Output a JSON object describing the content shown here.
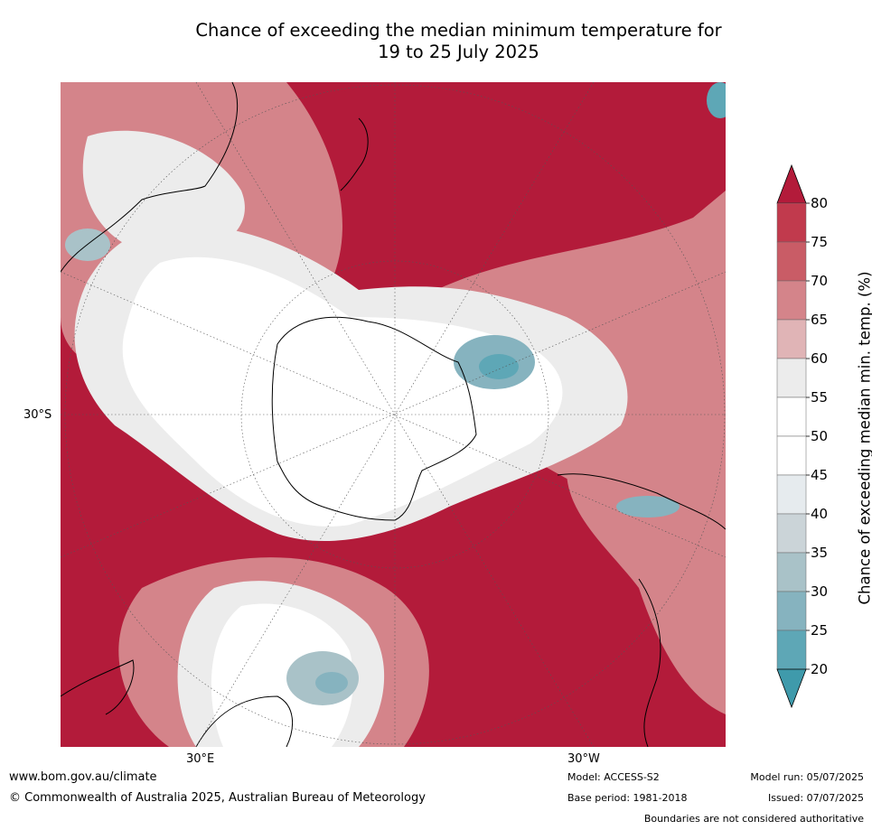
{
  "title": {
    "line1": "Chance of exceeding the median minimum temperature for",
    "line2": "19 to 25 July 2025"
  },
  "axes": {
    "lat_label": "30°S",
    "lon_left_label": "30°E",
    "lon_right_label": "30°W"
  },
  "colorbar": {
    "label": "Chance of exceeding median min. temp. (%)",
    "ticks": [
      "80",
      "75",
      "70",
      "65",
      "60",
      "55",
      "50",
      "45",
      "40",
      "35",
      "30",
      "25",
      "20"
    ],
    "colors": [
      "#b31b3a",
      "#c13a4d",
      "#c95c66",
      "#d4848a",
      "#e0b4b6",
      "#ececec",
      "#ffffff",
      "#ffffff",
      "#e6ebee",
      "#cbd4d8",
      "#a9c2c8",
      "#86b3bf",
      "#5ea7b6",
      "#3f9aab"
    ]
  },
  "footer": {
    "website": "www.bom.gov.au/climate",
    "copyright": "© Commonwealth of Australia 2025, Australian Bureau of Meteorology",
    "model": "Model: ACCESS-S2",
    "base_period": "Base period: 1981-2018",
    "model_run": "Model run: 05/07/2025",
    "issued": "Issued: 07/07/2025",
    "disclaimer": "Boundaries are not considered authoritative"
  }
}
